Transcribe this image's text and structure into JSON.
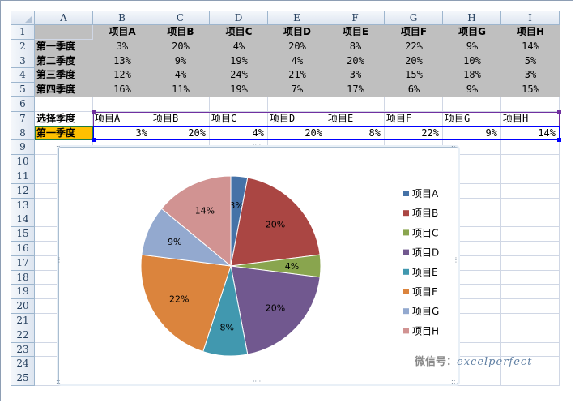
{
  "sheet": {
    "columns": [
      "A",
      "B",
      "C",
      "D",
      "E",
      "F",
      "G",
      "H",
      "I"
    ],
    "rows": [
      "1",
      "2",
      "3",
      "4",
      "5",
      "6",
      "7",
      "8",
      "9",
      "10",
      "11",
      "12",
      "13",
      "14",
      "15",
      "16",
      "17",
      "18",
      "19",
      "20",
      "21",
      "22",
      "23",
      "24",
      "25"
    ],
    "table_headers": [
      "项目A",
      "项目B",
      "项目C",
      "项目D",
      "项目E",
      "项目F",
      "项目G",
      "项目H"
    ],
    "table_rows": [
      {
        "label": "第一季度",
        "values": [
          "3%",
          "20%",
          "4%",
          "20%",
          "8%",
          "22%",
          "9%",
          "14%"
        ]
      },
      {
        "label": "第二季度",
        "values": [
          "13%",
          "9%",
          "19%",
          "4%",
          "20%",
          "20%",
          "10%",
          "5%"
        ]
      },
      {
        "label": "第三季度",
        "values": [
          "12%",
          "4%",
          "24%",
          "21%",
          "3%",
          "15%",
          "18%",
          "3%"
        ]
      },
      {
        "label": "第四季度",
        "values": [
          "16%",
          "11%",
          "19%",
          "7%",
          "17%",
          "6%",
          "9%",
          "15%"
        ]
      }
    ],
    "select_label": "选择季度",
    "selected_quarter": "第一季度",
    "selected_values": [
      "3%",
      "20%",
      "4%",
      "20%",
      "8%",
      "22%",
      "9%",
      "14%"
    ]
  },
  "colors": {
    "gray_fill": "#bfbfbf",
    "orange_fill": "#ffc000",
    "selection_purple": "#7030a0",
    "selection_blue": "#0000ff"
  },
  "chart_data": {
    "type": "pie",
    "title": "",
    "categories": [
      "项目A",
      "项目B",
      "项目C",
      "项目D",
      "项目E",
      "项目F",
      "项目G",
      "项目H"
    ],
    "values": [
      3,
      20,
      4,
      20,
      8,
      22,
      9,
      14
    ],
    "labels": [
      "3%",
      "20%",
      "4%",
      "20%",
      "8%",
      "22%",
      "9%",
      "14%"
    ],
    "colors": [
      "#4572a7",
      "#aa4643",
      "#89a54e",
      "#71588f",
      "#4198af",
      "#db843d",
      "#93a9cf",
      "#d19392"
    ],
    "legend_position": "right"
  },
  "watermark": {
    "label": "微信号：",
    "handle": "excelperfect"
  }
}
